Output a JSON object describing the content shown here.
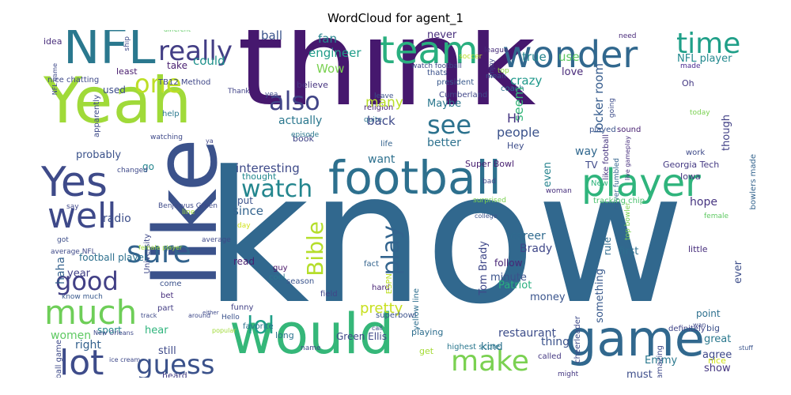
{
  "title": "WordCloud for agent_1",
  "words": [
    {
      "text": "know",
      "color": "#31688e"
    },
    {
      "text": "think",
      "color": "#46186e"
    },
    {
      "text": "Yeah",
      "color": "#a0da39"
    },
    {
      "text": "like",
      "color": "#3b528b"
    },
    {
      "text": "NFL",
      "color": "#2a788e"
    },
    {
      "text": "would",
      "color": "#35b779"
    },
    {
      "text": "game",
      "color": "#31688e"
    },
    {
      "text": "football",
      "color": "#2d708e"
    },
    {
      "text": "team",
      "color": "#29af7f"
    },
    {
      "text": "wonder",
      "color": "#31688e"
    },
    {
      "text": "Yes",
      "color": "#3e4a89"
    },
    {
      "text": "player",
      "color": "#2fb47c"
    },
    {
      "text": "well",
      "color": "#3e4989"
    },
    {
      "text": "much",
      "color": "#6ece58"
    },
    {
      "text": "lot",
      "color": "#3e4c8a"
    },
    {
      "text": "guess",
      "color": "#3b528b"
    },
    {
      "text": "make",
      "color": "#7ad151"
    },
    {
      "text": "really",
      "color": "#433e85"
    },
    {
      "text": "one",
      "color": "#bddf26"
    },
    {
      "text": "time",
      "color": "#1f9f88"
    },
    {
      "text": "sure",
      "color": "#33638d"
    },
    {
      "text": "good",
      "color": "#424086"
    },
    {
      "text": "also",
      "color": "#414487"
    },
    {
      "text": "see",
      "color": "#2c728e"
    },
    {
      "text": "watch",
      "color": "#24868e"
    },
    {
      "text": "Bible",
      "color": "#b5de2b"
    },
    {
      "text": "play",
      "color": "#32648e"
    },
    {
      "text": "lol",
      "color": "#1fa088"
    },
    {
      "text": "pretty",
      "color": "#c8e020"
    },
    {
      "text": "ball",
      "color": "#3a548c"
    },
    {
      "text": "fan",
      "color": "#25848e"
    },
    {
      "text": "engineer",
      "color": "#1e9c89"
    },
    {
      "text": "could",
      "color": "#20928c"
    },
    {
      "text": "Wow",
      "color": "#7ad151"
    },
    {
      "text": "true",
      "color": "#25848e"
    },
    {
      "text": "use",
      "color": "#5ec962"
    },
    {
      "text": "never",
      "color": "#472d7b"
    },
    {
      "text": "love",
      "color": "#482979"
    },
    {
      "text": "crazy",
      "color": "#1f988b"
    },
    {
      "text": "locker room",
      "color": "#365c8d"
    },
    {
      "text": "NFL player",
      "color": "#23898e"
    },
    {
      "text": "Oh",
      "color": "#443983"
    },
    {
      "text": "made",
      "color": "#4b2991"
    },
    {
      "text": "need",
      "color": "#482979"
    },
    {
      "text": "idea",
      "color": "#472c7a"
    },
    {
      "text": "different",
      "color": "#5ec962"
    },
    {
      "text": "TB12 Method",
      "color": "#3f4788"
    },
    {
      "text": "take",
      "color": "#481f70"
    },
    {
      "text": "least",
      "color": "#481b6d"
    },
    {
      "text": "nice chatting",
      "color": "#3e4989"
    },
    {
      "text": "used",
      "color": "#3d4d8a"
    },
    {
      "text": "believe",
      "color": "#46337f"
    },
    {
      "text": "Maybe",
      "color": "#2a778e"
    },
    {
      "text": "Thank",
      "color": "#404387"
    },
    {
      "text": "president",
      "color": "#38598c"
    },
    {
      "text": "Cumberland",
      "color": "#404688"
    },
    {
      "text": "coach",
      "color": "#2b748e"
    },
    {
      "text": "leave",
      "color": "#3b518b"
    },
    {
      "text": "religion",
      "color": "#482475"
    },
    {
      "text": "quite",
      "color": "#2c738e"
    },
    {
      "text": "actually",
      "color": "#2a778e"
    },
    {
      "text": "back",
      "color": "#3e4a89"
    },
    {
      "text": "many",
      "color": "#b8de29"
    },
    {
      "text": "seem",
      "color": "#34b679"
    },
    {
      "text": "Hi",
      "color": "#453581"
    },
    {
      "text": "people",
      "color": "#3b528b"
    },
    {
      "text": "better",
      "color": "#2d718e"
    },
    {
      "text": "life",
      "color": "#33628d"
    },
    {
      "text": "Hey",
      "color": "#3d4d8a"
    },
    {
      "text": "book",
      "color": "#414487"
    },
    {
      "text": "want",
      "color": "#2d708e"
    },
    {
      "text": "interesting",
      "color": "#3e4a89"
    },
    {
      "text": "thought",
      "color": "#23898e"
    },
    {
      "text": "probably",
      "color": "#3b528b"
    },
    {
      "text": "haha",
      "color": "#34618d"
    },
    {
      "text": "help",
      "color": "#2a788e"
    },
    {
      "text": "apparently",
      "color": "#3e4a89"
    },
    {
      "text": "go",
      "color": "#24868e"
    },
    {
      "text": "since",
      "color": "#33638d"
    },
    {
      "text": "hope",
      "color": "#463480"
    },
    {
      "text": "Super Bowl",
      "color": "#482071"
    },
    {
      "text": "Georgia Tech",
      "color": "#443983"
    },
    {
      "text": "Iowa",
      "color": "#453882"
    },
    {
      "text": "way",
      "color": "#31688e"
    },
    {
      "text": "even",
      "color": "#25838e"
    },
    {
      "text": "though",
      "color": "#424186"
    },
    {
      "text": "played",
      "color": "#3a548c"
    },
    {
      "text": "sound",
      "color": "#482071"
    },
    {
      "text": "work",
      "color": "#3e4a89"
    },
    {
      "text": "bowlers made",
      "color": "#33638d"
    },
    {
      "text": "like football",
      "color": "#46337f"
    },
    {
      "text": "career",
      "color": "#306a8e"
    },
    {
      "text": "Brady",
      "color": "#3f4788"
    },
    {
      "text": "minute",
      "color": "#3b528b"
    },
    {
      "text": "Patriot",
      "color": "#29af7f"
    },
    {
      "text": "Tom Brady",
      "color": "#3f4889"
    },
    {
      "text": "money",
      "color": "#3a548c"
    },
    {
      "text": "rule",
      "color": "#2f6b8e"
    },
    {
      "text": "something",
      "color": "#38598c"
    },
    {
      "text": "first",
      "color": "#2e6e8e"
    },
    {
      "text": "ever",
      "color": "#3d4e8a"
    },
    {
      "text": "football player",
      "color": "#2d708e"
    },
    {
      "text": "radio",
      "color": "#3d4e8a"
    },
    {
      "text": "year",
      "color": "#424086"
    },
    {
      "text": "read",
      "color": "#481f70"
    },
    {
      "text": "women",
      "color": "#5ec962"
    },
    {
      "text": "right",
      "color": "#34618d"
    },
    {
      "text": "still",
      "color": "#3e4a89"
    },
    {
      "text": "hear",
      "color": "#2fb47c"
    },
    {
      "text": "sport",
      "color": "#24868e"
    },
    {
      "text": "restaurant",
      "color": "#3d4d8a"
    },
    {
      "text": "kind",
      "color": "#2c728e"
    },
    {
      "text": "thing",
      "color": "#3b528b"
    },
    {
      "text": "great",
      "color": "#2a788e"
    },
    {
      "text": "agree",
      "color": "#3e4989"
    },
    {
      "text": "show",
      "color": "#453781"
    },
    {
      "text": "must",
      "color": "#3d4d8a"
    },
    {
      "text": "Emmy",
      "color": "#2a788e"
    },
    {
      "text": "heard",
      "color": "#433e85"
    },
    {
      "text": "Green Ellis",
      "color": "#3f4788"
    },
    {
      "text": "get",
      "color": "#a5db36"
    },
    {
      "text": "playing",
      "color": "#2e6e8e"
    },
    {
      "text": "long",
      "color": "#2c738e"
    },
    {
      "text": "superbowl",
      "color": "#3b528b"
    },
    {
      "text": "hard",
      "color": "#482475"
    },
    {
      "text": "fact",
      "color": "#33638d"
    },
    {
      "text": "cool",
      "color": "#2a788e"
    },
    {
      "text": "guy",
      "color": "#481467"
    },
    {
      "text": "season",
      "color": "#3a548c"
    },
    {
      "text": "field",
      "color": "#404588"
    },
    {
      "text": "yellow line",
      "color": "#2e6f8e"
    },
    {
      "text": "follow",
      "color": "#482576"
    },
    {
      "text": "cheerleader",
      "color": "#3e4a89"
    },
    {
      "text": "little",
      "color": "#472e7c"
    },
    {
      "text": "big",
      "color": "#3b518b"
    },
    {
      "text": "amazing",
      "color": "#3e4989"
    },
    {
      "text": "definitely",
      "color": "#404588"
    },
    {
      "text": "point",
      "color": "#2d708e"
    },
    {
      "text": "nice",
      "color": "#d2e21b"
    },
    {
      "text": "stuff",
      "color": "#3a548c"
    },
    {
      "text": "called",
      "color": "#453882"
    },
    {
      "text": "might",
      "color": "#453882"
    },
    {
      "text": "funny",
      "color": "#424186"
    },
    {
      "text": "Hello",
      "color": "#3b528b"
    },
    {
      "text": "favorite",
      "color": "#2c728e"
    },
    {
      "text": "part",
      "color": "#433d84"
    },
    {
      "text": "bet",
      "color": "#472f7d"
    },
    {
      "text": "come",
      "color": "#3b518b"
    },
    {
      "text": "know much",
      "color": "#38588c"
    },
    {
      "text": "football game",
      "color": "#3e4a89"
    },
    {
      "text": "say",
      "color": "#3f4788"
    },
    {
      "text": "got",
      "color": "#3d4e8a"
    },
    {
      "text": "University",
      "color": "#3f4889"
    },
    {
      "text": "day",
      "color": "#d0e11c"
    },
    {
      "text": "highest score",
      "color": "#2a778e"
    },
    {
      "text": "ESPN",
      "color": "#bddf26"
    },
    {
      "text": "thats",
      "color": "#3b528b"
    },
    {
      "text": "soccer",
      "color": "#bddf26"
    },
    {
      "text": "league",
      "color": "#472c7a"
    },
    {
      "text": "put",
      "color": "#3b528b"
    },
    {
      "text": "episode",
      "color": "#2a788e"
    },
    {
      "text": "TV",
      "color": "#3e4989"
    },
    {
      "text": "New",
      "color": "#2fb47c"
    },
    {
      "text": "going",
      "color": "#3d4d8a"
    },
    {
      "text": "never fumbled",
      "color": "#33638d"
    },
    {
      "text": "live gameplay",
      "color": "#472f7d"
    },
    {
      "text": "today",
      "color": "#7ad151"
    },
    {
      "text": "tracking chip",
      "color": "#4ac16d"
    },
    {
      "text": "top bowler",
      "color": "#7ad151"
    },
    {
      "text": "female",
      "color": "#5ec962"
    },
    {
      "text": "college",
      "color": "#3b528b"
    },
    {
      "text": "woman",
      "color": "#472f7d"
    },
    {
      "text": "bad",
      "color": "#404688"
    },
    {
      "text": "surprised",
      "color": "#7ad151"
    },
    {
      "text": "watch football",
      "color": "#3e4989"
    },
    {
      "text": "top",
      "color": "#8fd744"
    },
    {
      "text": "enjoy",
      "color": "#3e4989"
    },
    {
      "text": "mean",
      "color": "#3b528b"
    },
    {
      "text": "ya",
      "color": "#404688"
    },
    {
      "text": "watching",
      "color": "#3e4989"
    },
    {
      "text": "changed",
      "color": "#3e4989"
    },
    {
      "text": "Benjarvus Green",
      "color": "#3e4a89"
    },
    {
      "text": "line",
      "color": "#a0da39"
    },
    {
      "text": "average",
      "color": "#3e4989"
    },
    {
      "text": "average NFL",
      "color": "#3e4989"
    },
    {
      "text": "track",
      "color": "#3e4989"
    },
    {
      "text": "female player",
      "color": "#a0da39"
    },
    {
      "text": "New Orleans",
      "color": "#3e4989"
    },
    {
      "text": "ice cream",
      "color": "#3e4989"
    },
    {
      "text": "either",
      "color": "#3e4989"
    },
    {
      "text": "popular",
      "color": "#a0da39"
    },
    {
      "text": "name",
      "color": "#3e4989"
    },
    {
      "text": "call",
      "color": "#3e4989"
    },
    {
      "text": "around",
      "color": "#3e4989"
    },
    {
      "text": "wan",
      "color": "#3e4989"
    },
    {
      "text": "ship",
      "color": "#3e4989"
    },
    {
      "text": "NFL game",
      "color": "#3e4989"
    },
    {
      "text": "yea",
      "color": "#3e4989"
    }
  ]
}
